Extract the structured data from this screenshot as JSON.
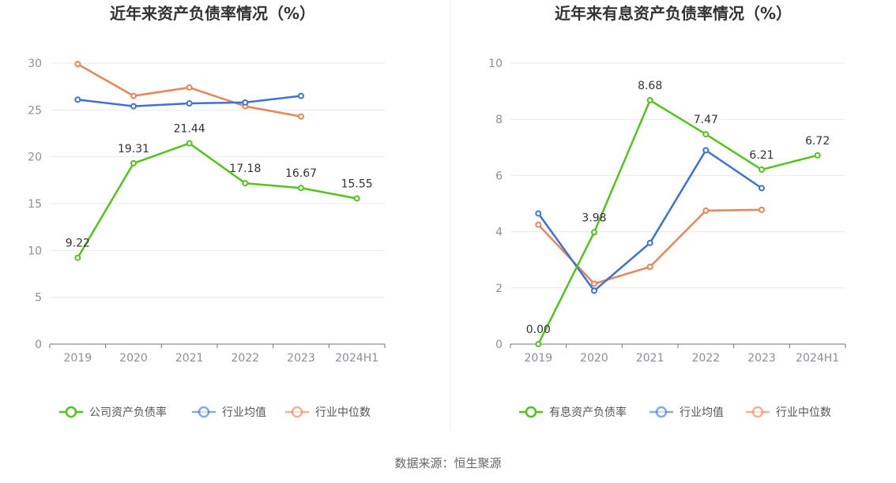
{
  "chart_data": [
    {
      "type": "line",
      "title": "近年来资产负债率情况（%）",
      "categories": [
        "2019",
        "2020",
        "2021",
        "2022",
        "2023",
        "2024H1"
      ],
      "ylim": [
        0,
        30
      ],
      "yticks": [
        0,
        5,
        10,
        15,
        20,
        25,
        30
      ],
      "grid": true,
      "legend_position": "bottom",
      "series": [
        {
          "name": "公司资产负债率",
          "color": "#52c41a",
          "values": [
            9.22,
            19.31,
            21.44,
            17.18,
            16.67,
            15.55
          ],
          "labels": [
            "9.22",
            "19.31",
            "21.44",
            "17.18",
            "16.67",
            "15.55"
          ]
        },
        {
          "name": "行业均值",
          "color": "#3a72d9",
          "values": [
            26.1,
            25.4,
            25.7,
            25.8,
            26.5,
            null
          ]
        },
        {
          "name": "行业中位数",
          "color": "#ee8254",
          "values": [
            29.9,
            26.5,
            27.4,
            25.4,
            24.3,
            null
          ]
        }
      ]
    },
    {
      "type": "line",
      "title": "近年来有息资产负债率情况（%）",
      "categories": [
        "2019",
        "2020",
        "2021",
        "2022",
        "2023",
        "2024H1"
      ],
      "ylim": [
        0,
        10
      ],
      "yticks": [
        0,
        2,
        4,
        6,
        8,
        10
      ],
      "grid": true,
      "legend_position": "bottom",
      "series": [
        {
          "name": "有息资产负债率",
          "color": "#52c41a",
          "values": [
            0.0,
            3.98,
            8.68,
            7.47,
            6.21,
            6.72
          ],
          "labels": [
            "0.00",
            "3.98",
            "8.68",
            "7.47",
            "6.21",
            "6.72"
          ]
        },
        {
          "name": "行业均值",
          "color": "#3a72d9",
          "values": [
            4.65,
            1.9,
            3.6,
            6.9,
            5.55,
            null
          ]
        },
        {
          "name": "行业中位数",
          "color": "#ee8254",
          "values": [
            4.25,
            2.15,
            2.75,
            4.75,
            4.78,
            null
          ]
        }
      ]
    }
  ],
  "footer": {
    "source": "数据来源：恒生聚源"
  }
}
